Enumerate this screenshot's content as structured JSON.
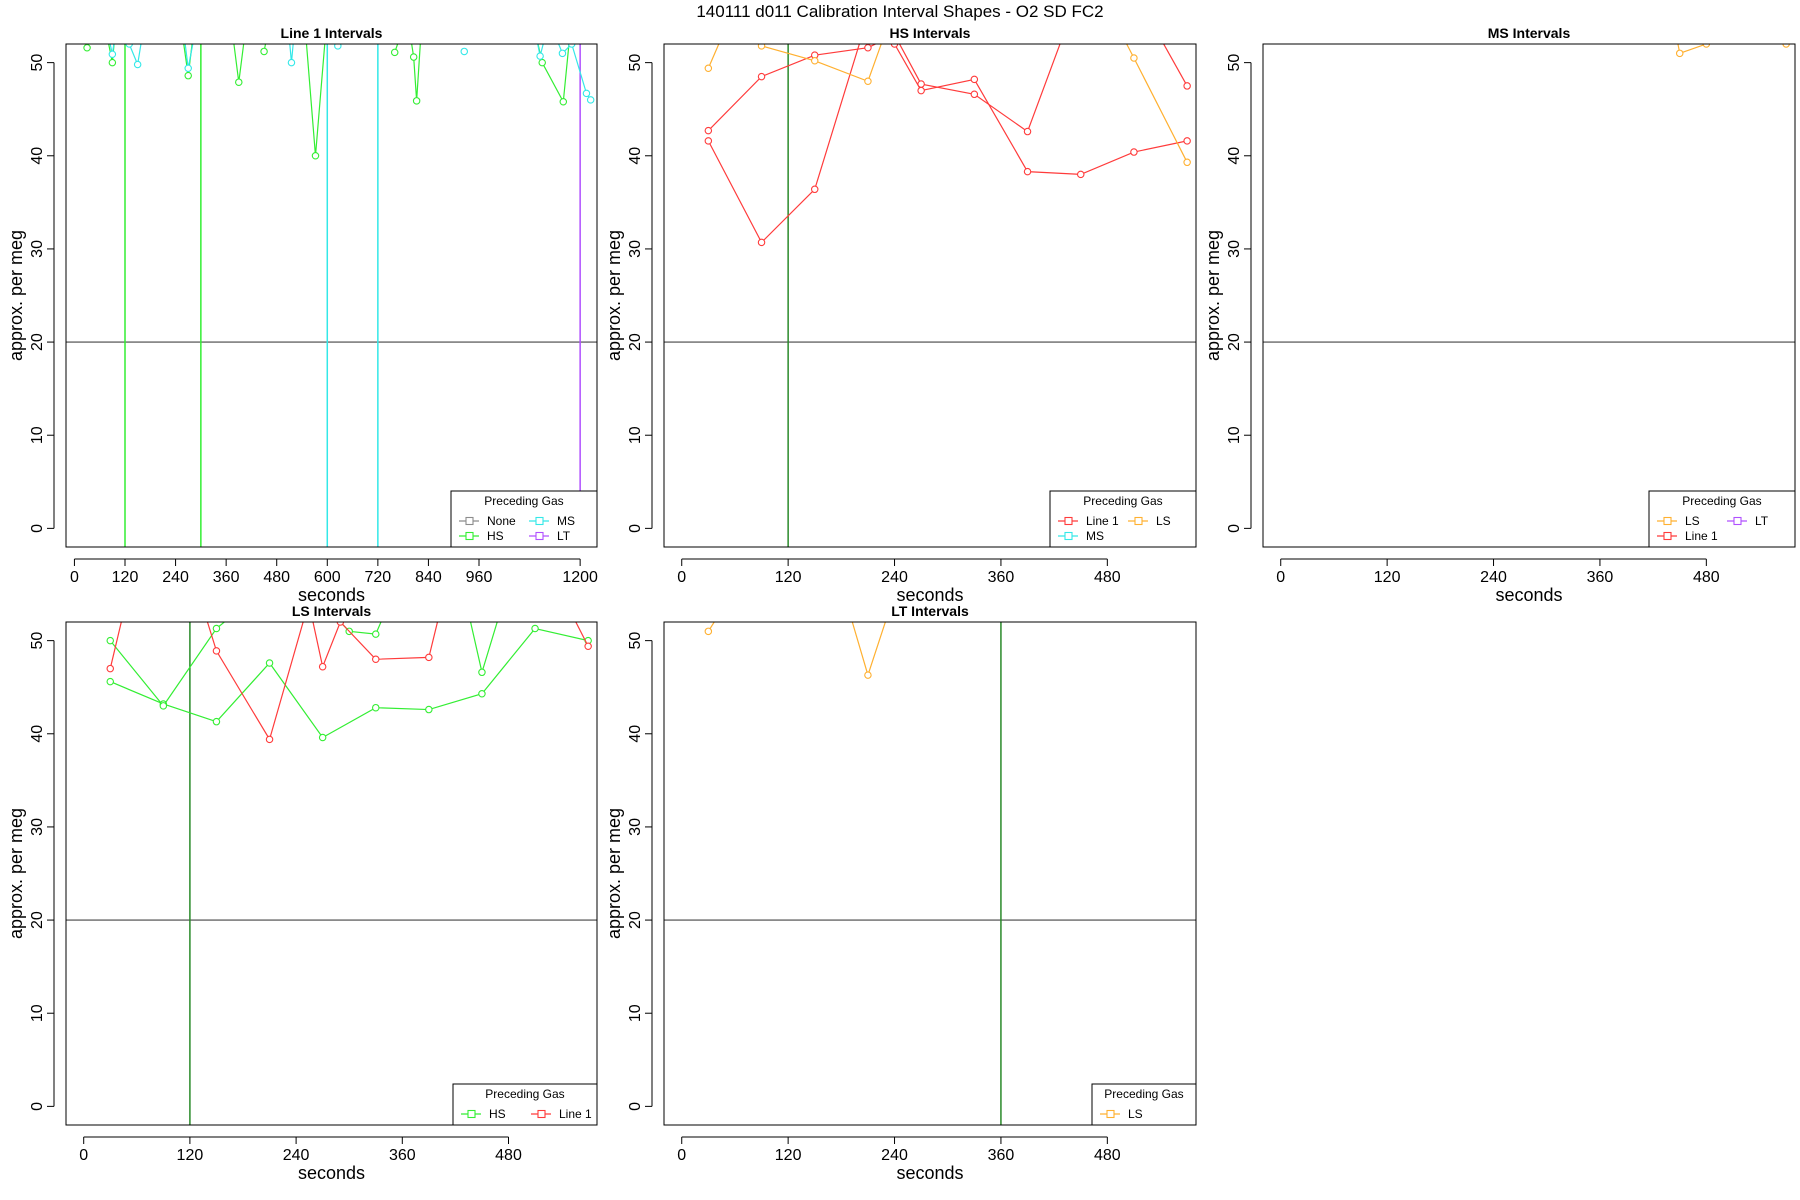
{
  "figure": {
    "title": "140111   d011   Calibration Interval Shapes - O2 SD FC2"
  },
  "colors": {
    "None": "#8c8c8c",
    "Line 1": "#ff3b3b",
    "HS": "#33ee33",
    "MS": "#33e8e8",
    "LS": "#ffb030",
    "LT": "#b050ff",
    "reference_line": "#444444",
    "marker_line": "#2a8a2a"
  },
  "chart_data": [
    {
      "type": "line",
      "title": "Line 1 Intervals",
      "xlabel": "seconds",
      "ylabel": "approx. per meg",
      "xlim": [
        -20,
        1240
      ],
      "ylim": [
        -2,
        52
      ],
      "xticks": [
        0,
        120,
        240,
        360,
        480,
        600,
        720,
        840,
        960,
        1200
      ],
      "yticks": [
        0,
        10,
        20,
        30,
        40,
        50
      ],
      "hline": 20,
      "vlines": [
        {
          "x": 120,
          "gas": "HS"
        },
        {
          "x": 300,
          "gas": "HS"
        },
        {
          "x": 600,
          "gas": "MS"
        },
        {
          "x": 720,
          "gas": "MS"
        },
        {
          "x": 1200,
          "gas": "LT"
        }
      ],
      "legend": {
        "title": "Preceding Gas",
        "position": "bottomright",
        "entries": [
          "None",
          "HS",
          "MS",
          "LT"
        ]
      },
      "series": [
        {
          "name": "HS",
          "points": [
            [
              10,
              60
            ],
            [
              30,
              51.6
            ],
            [
              55,
              58
            ],
            [
              90,
              50
            ],
            [
              110,
              60
            ]
          ]
        },
        {
          "name": "HS",
          "points": [
            [
              250,
              55
            ],
            [
              270,
              48.6
            ],
            [
              290,
              56
            ]
          ]
        },
        {
          "name": "HS",
          "points": [
            [
              370,
              55
            ],
            [
              390,
              47.9
            ],
            [
              410,
              55
            ]
          ]
        },
        {
          "name": "HS",
          "points": [
            [
              450,
              51.2
            ],
            [
              470,
              56
            ]
          ]
        },
        {
          "name": "HS",
          "points": [
            [
              540,
              58
            ],
            [
              572,
              40
            ],
            [
              605,
              58
            ]
          ]
        },
        {
          "name": "HS",
          "points": [
            [
              760,
              51.1
            ],
            [
              790,
              55
            ]
          ]
        },
        {
          "name": "HS",
          "points": [
            [
              790,
              55
            ],
            [
              805,
              50.6
            ],
            [
              812,
              45.9
            ],
            [
              825,
              55
            ]
          ]
        },
        {
          "name": "HS",
          "points": [
            [
              1080,
              56
            ],
            [
              1110,
              50
            ],
            [
              1160,
              45.8
            ],
            [
              1180,
              55
            ]
          ]
        },
        {
          "name": "MS",
          "points": [
            [
              80,
              53
            ],
            [
              90,
              50.9
            ],
            [
              100,
              54
            ]
          ]
        },
        {
          "name": "MS",
          "points": [
            [
              130,
              52
            ],
            [
              150,
              49.8
            ],
            [
              165,
              54
            ]
          ]
        },
        {
          "name": "MS",
          "points": [
            [
              260,
              53
            ],
            [
              270,
              49.4
            ],
            [
              285,
              53
            ]
          ]
        },
        {
          "name": "MS",
          "points": [
            [
              505,
              55
            ],
            [
              515,
              50
            ],
            [
              525,
              55
            ]
          ]
        },
        {
          "name": "MS",
          "points": [
            [
              625,
              51.8
            ],
            [
              640,
              54
            ]
          ]
        },
        {
          "name": "MS",
          "points": [
            [
              925,
              51.2
            ]
          ]
        },
        {
          "name": "MS",
          "points": [
            [
              1095,
              53
            ],
            [
              1105,
              50.7
            ],
            [
              1118,
              53
            ]
          ]
        },
        {
          "name": "MS",
          "points": [
            [
              1140,
              53
            ],
            [
              1158,
              51
            ],
            [
              1180,
              52
            ],
            [
              1215,
              46.7
            ],
            [
              1225,
              46
            ]
          ]
        }
      ]
    },
    {
      "type": "line",
      "title": "HS Intervals",
      "xlabel": "seconds",
      "ylabel": "approx. per meg",
      "xlim": [
        -20,
        580
      ],
      "ylim": [
        -2,
        52
      ],
      "xticks": [
        0,
        120,
        240,
        360,
        480
      ],
      "yticks": [
        0,
        10,
        20,
        30,
        40,
        50
      ],
      "hline": 20,
      "vlines": [
        {
          "x": 120,
          "gas": "marker"
        }
      ],
      "legend": {
        "title": "Preceding Gas",
        "position": "bottomright",
        "entries": [
          "Line 1",
          "MS",
          "LS"
        ]
      },
      "series": [
        {
          "name": "Line 1",
          "points": [
            [
              30,
              41.6
            ],
            [
              90,
              30.7
            ],
            [
              150,
              36.4
            ],
            [
              210,
              55
            ],
            [
              240,
              52
            ],
            [
              270,
              47
            ],
            [
              330,
              48.2
            ],
            [
              390,
              38.3
            ],
            [
              450,
              38
            ],
            [
              510,
              40.4
            ],
            [
              570,
              41.6
            ]
          ]
        },
        {
          "name": "Line 1",
          "points": [
            [
              30,
              42.7
            ],
            [
              90,
              48.5
            ],
            [
              150,
              50.8
            ],
            [
              210,
              51.6
            ],
            [
              240,
              53
            ],
            [
              270,
              47.7
            ],
            [
              330,
              46.6
            ],
            [
              390,
              42.6
            ],
            [
              450,
              58
            ]
          ]
        },
        {
          "name": "Line 1",
          "points": [
            [
              520,
              56
            ],
            [
              570,
              47.5
            ]
          ]
        },
        {
          "name": "LS",
          "points": [
            [
              30,
              49.4
            ],
            [
              60,
              56
            ]
          ]
        },
        {
          "name": "LS",
          "points": [
            [
              90,
              51.8
            ],
            [
              150,
              50.2
            ],
            [
              210,
              48
            ],
            [
              240,
              56
            ]
          ]
        },
        {
          "name": "LS",
          "points": [
            [
              480,
              56
            ],
            [
              510,
              50.5
            ],
            [
              570,
              39.3
            ]
          ]
        }
      ]
    },
    {
      "type": "line",
      "title": "MS Intervals",
      "xlabel": "seconds",
      "ylabel": "approx. per meg",
      "xlim": [
        -20,
        580
      ],
      "ylim": [
        -2,
        52
      ],
      "xticks": [
        0,
        120,
        240,
        360,
        480
      ],
      "yticks": [
        0,
        10,
        20,
        30,
        40,
        50
      ],
      "hline": 20,
      "vlines": [],
      "legend": {
        "title": "Preceding Gas",
        "position": "bottomright",
        "entries": [
          "LS",
          "Line 1",
          "LT"
        ]
      },
      "series": [
        {
          "name": "LS",
          "points": [
            [
              440,
              56
            ],
            [
              450,
              51
            ],
            [
              480,
              52
            ],
            [
              500,
              53
            ]
          ]
        },
        {
          "name": "LS",
          "points": [
            [
              570,
              52
            ]
          ]
        }
      ]
    },
    {
      "type": "line",
      "title": "LS Intervals",
      "xlabel": "seconds",
      "ylabel": "approx. per meg",
      "xlim": [
        -20,
        580
      ],
      "ylim": [
        -2,
        52
      ],
      "xticks": [
        0,
        120,
        240,
        360,
        480
      ],
      "yticks": [
        0,
        10,
        20,
        30,
        40,
        50
      ],
      "hline": 20,
      "vlines": [
        {
          "x": 120,
          "gas": "marker"
        }
      ],
      "legend": {
        "title": "Preceding Gas",
        "position": "bottomright",
        "entries": [
          "HS",
          "Line 1"
        ]
      },
      "series": [
        {
          "name": "HS",
          "points": [
            [
              30,
              45.6
            ],
            [
              90,
              43.2
            ],
            [
              150,
              41.3
            ],
            [
              210,
              47.6
            ],
            [
              270,
              39.6
            ],
            [
              330,
              42.8
            ],
            [
              390,
              42.6
            ],
            [
              450,
              44.3
            ],
            [
              510,
              51.3
            ],
            [
              570,
              50
            ]
          ]
        },
        {
          "name": "HS",
          "points": [
            [
              30,
              50
            ],
            [
              90,
              43
            ],
            [
              150,
              51.3
            ],
            [
              210,
              56
            ]
          ]
        },
        {
          "name": "HS",
          "points": [
            [
              270,
              54
            ],
            [
              300,
              51
            ],
            [
              330,
              50.7
            ],
            [
              345,
              54
            ]
          ]
        },
        {
          "name": "HS",
          "points": [
            [
              430,
              55
            ],
            [
              450,
              46.6
            ],
            [
              480,
              56
            ]
          ]
        },
        {
          "name": "Line 1",
          "points": [
            [
              30,
              47
            ],
            [
              50,
              55
            ]
          ]
        },
        {
          "name": "Line 1",
          "points": [
            [
              130,
              55
            ],
            [
              150,
              48.9
            ],
            [
              210,
              39.4
            ],
            [
              260,
              56
            ]
          ]
        },
        {
          "name": "Line 1",
          "points": [
            [
              250,
              56
            ],
            [
              270,
              47.2
            ],
            [
              290,
              52
            ],
            [
              330,
              48
            ],
            [
              390,
              48.2
            ],
            [
              410,
              56
            ]
          ]
        },
        {
          "name": "Line 1",
          "points": [
            [
              540,
              55
            ],
            [
              570,
              49.4
            ]
          ]
        }
      ]
    },
    {
      "type": "line",
      "title": "LT Intervals",
      "xlabel": "seconds",
      "ylabel": "approx. per meg",
      "xlim": [
        -20,
        580
      ],
      "ylim": [
        -2,
        52
      ],
      "xticks": [
        0,
        120,
        240,
        360,
        480
      ],
      "yticks": [
        0,
        10,
        20,
        30,
        40,
        50
      ],
      "hline": 20,
      "vlines": [
        {
          "x": 360,
          "gas": "marker"
        }
      ],
      "legend": {
        "title": "Preceding Gas",
        "position": "bottomright",
        "entries": [
          "LS"
        ]
      },
      "series": [
        {
          "name": "LS",
          "points": [
            [
              30,
              51
            ],
            [
              50,
              54
            ]
          ]
        },
        {
          "name": "LS",
          "points": [
            [
              180,
              56
            ],
            [
              210,
              46.3
            ],
            [
              240,
              55
            ]
          ]
        }
      ]
    }
  ]
}
